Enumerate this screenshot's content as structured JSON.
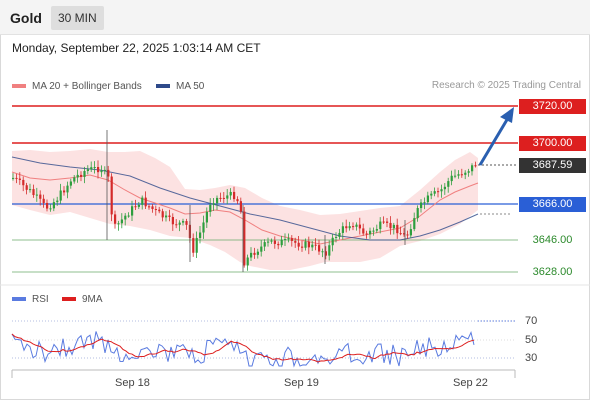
{
  "header": {
    "title": "Gold",
    "timeframe": "30 MIN"
  },
  "datetime": "Monday, September 22, 2025 1:03:14 AM CET",
  "legend": {
    "bb": {
      "label": "MA 20 + Bollinger Bands",
      "color": "#f08080"
    },
    "ma50": {
      "label": "MA 50",
      "color": "#2e4a8a"
    }
  },
  "credit": "Research © 2025 Trading Central",
  "levels": {
    "r2": "3720.00",
    "r1": "3700.00",
    "last": "3687.59",
    "pivot": "3666.00",
    "s1": "3646.00",
    "s2": "3628.00"
  },
  "rsi_legend": {
    "rsi": "RSI",
    "ma": "9MA"
  },
  "rsi_ticks": [
    "70",
    "50",
    "30"
  ],
  "x_ticks": [
    "Sep 18",
    "Sep 19",
    "Sep 22"
  ],
  "colors": {
    "up": "#2e9e3e",
    "down": "#d42a2a",
    "resistance": "#dd1f1f",
    "pivot": "#2a5fd6",
    "support": "#3a9a3a",
    "rsi": "#5a7be0",
    "rsi_ma": "#dd1f1f",
    "last_bg": "#333333"
  }
}
